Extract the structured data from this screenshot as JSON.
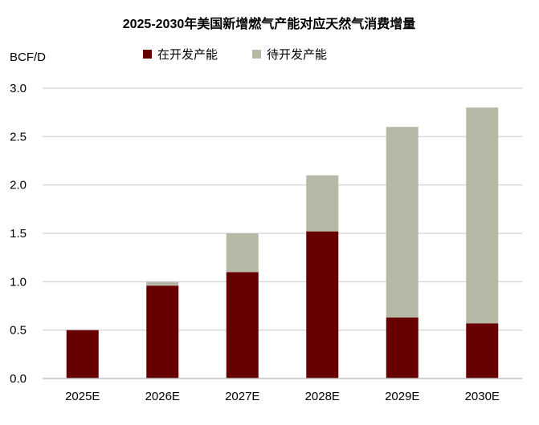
{
  "chart_data": {
    "type": "bar",
    "stacked": true,
    "title": "2025-2030年美国新增燃气产能对应天然气消费增量",
    "ylabel": "BCF/D",
    "xlabel": "",
    "ylim": [
      0,
      3.0
    ],
    "yticks": [
      "0.0",
      "0.5",
      "1.0",
      "1.5",
      "2.0",
      "2.5",
      "3.0"
    ],
    "grid": true,
    "legend_position": "top",
    "categories": [
      "2025E",
      "2026E",
      "2027E",
      "2028E",
      "2029E",
      "2030E"
    ],
    "series": [
      {
        "name": "在开发产能",
        "color": "#660000",
        "values": [
          0.5,
          0.96,
          1.1,
          1.52,
          0.63,
          0.57
        ]
      },
      {
        "name": "待开发产能",
        "color": "#b7b8a5",
        "values": [
          0.0,
          0.04,
          0.4,
          0.58,
          1.97,
          2.23
        ]
      }
    ]
  }
}
